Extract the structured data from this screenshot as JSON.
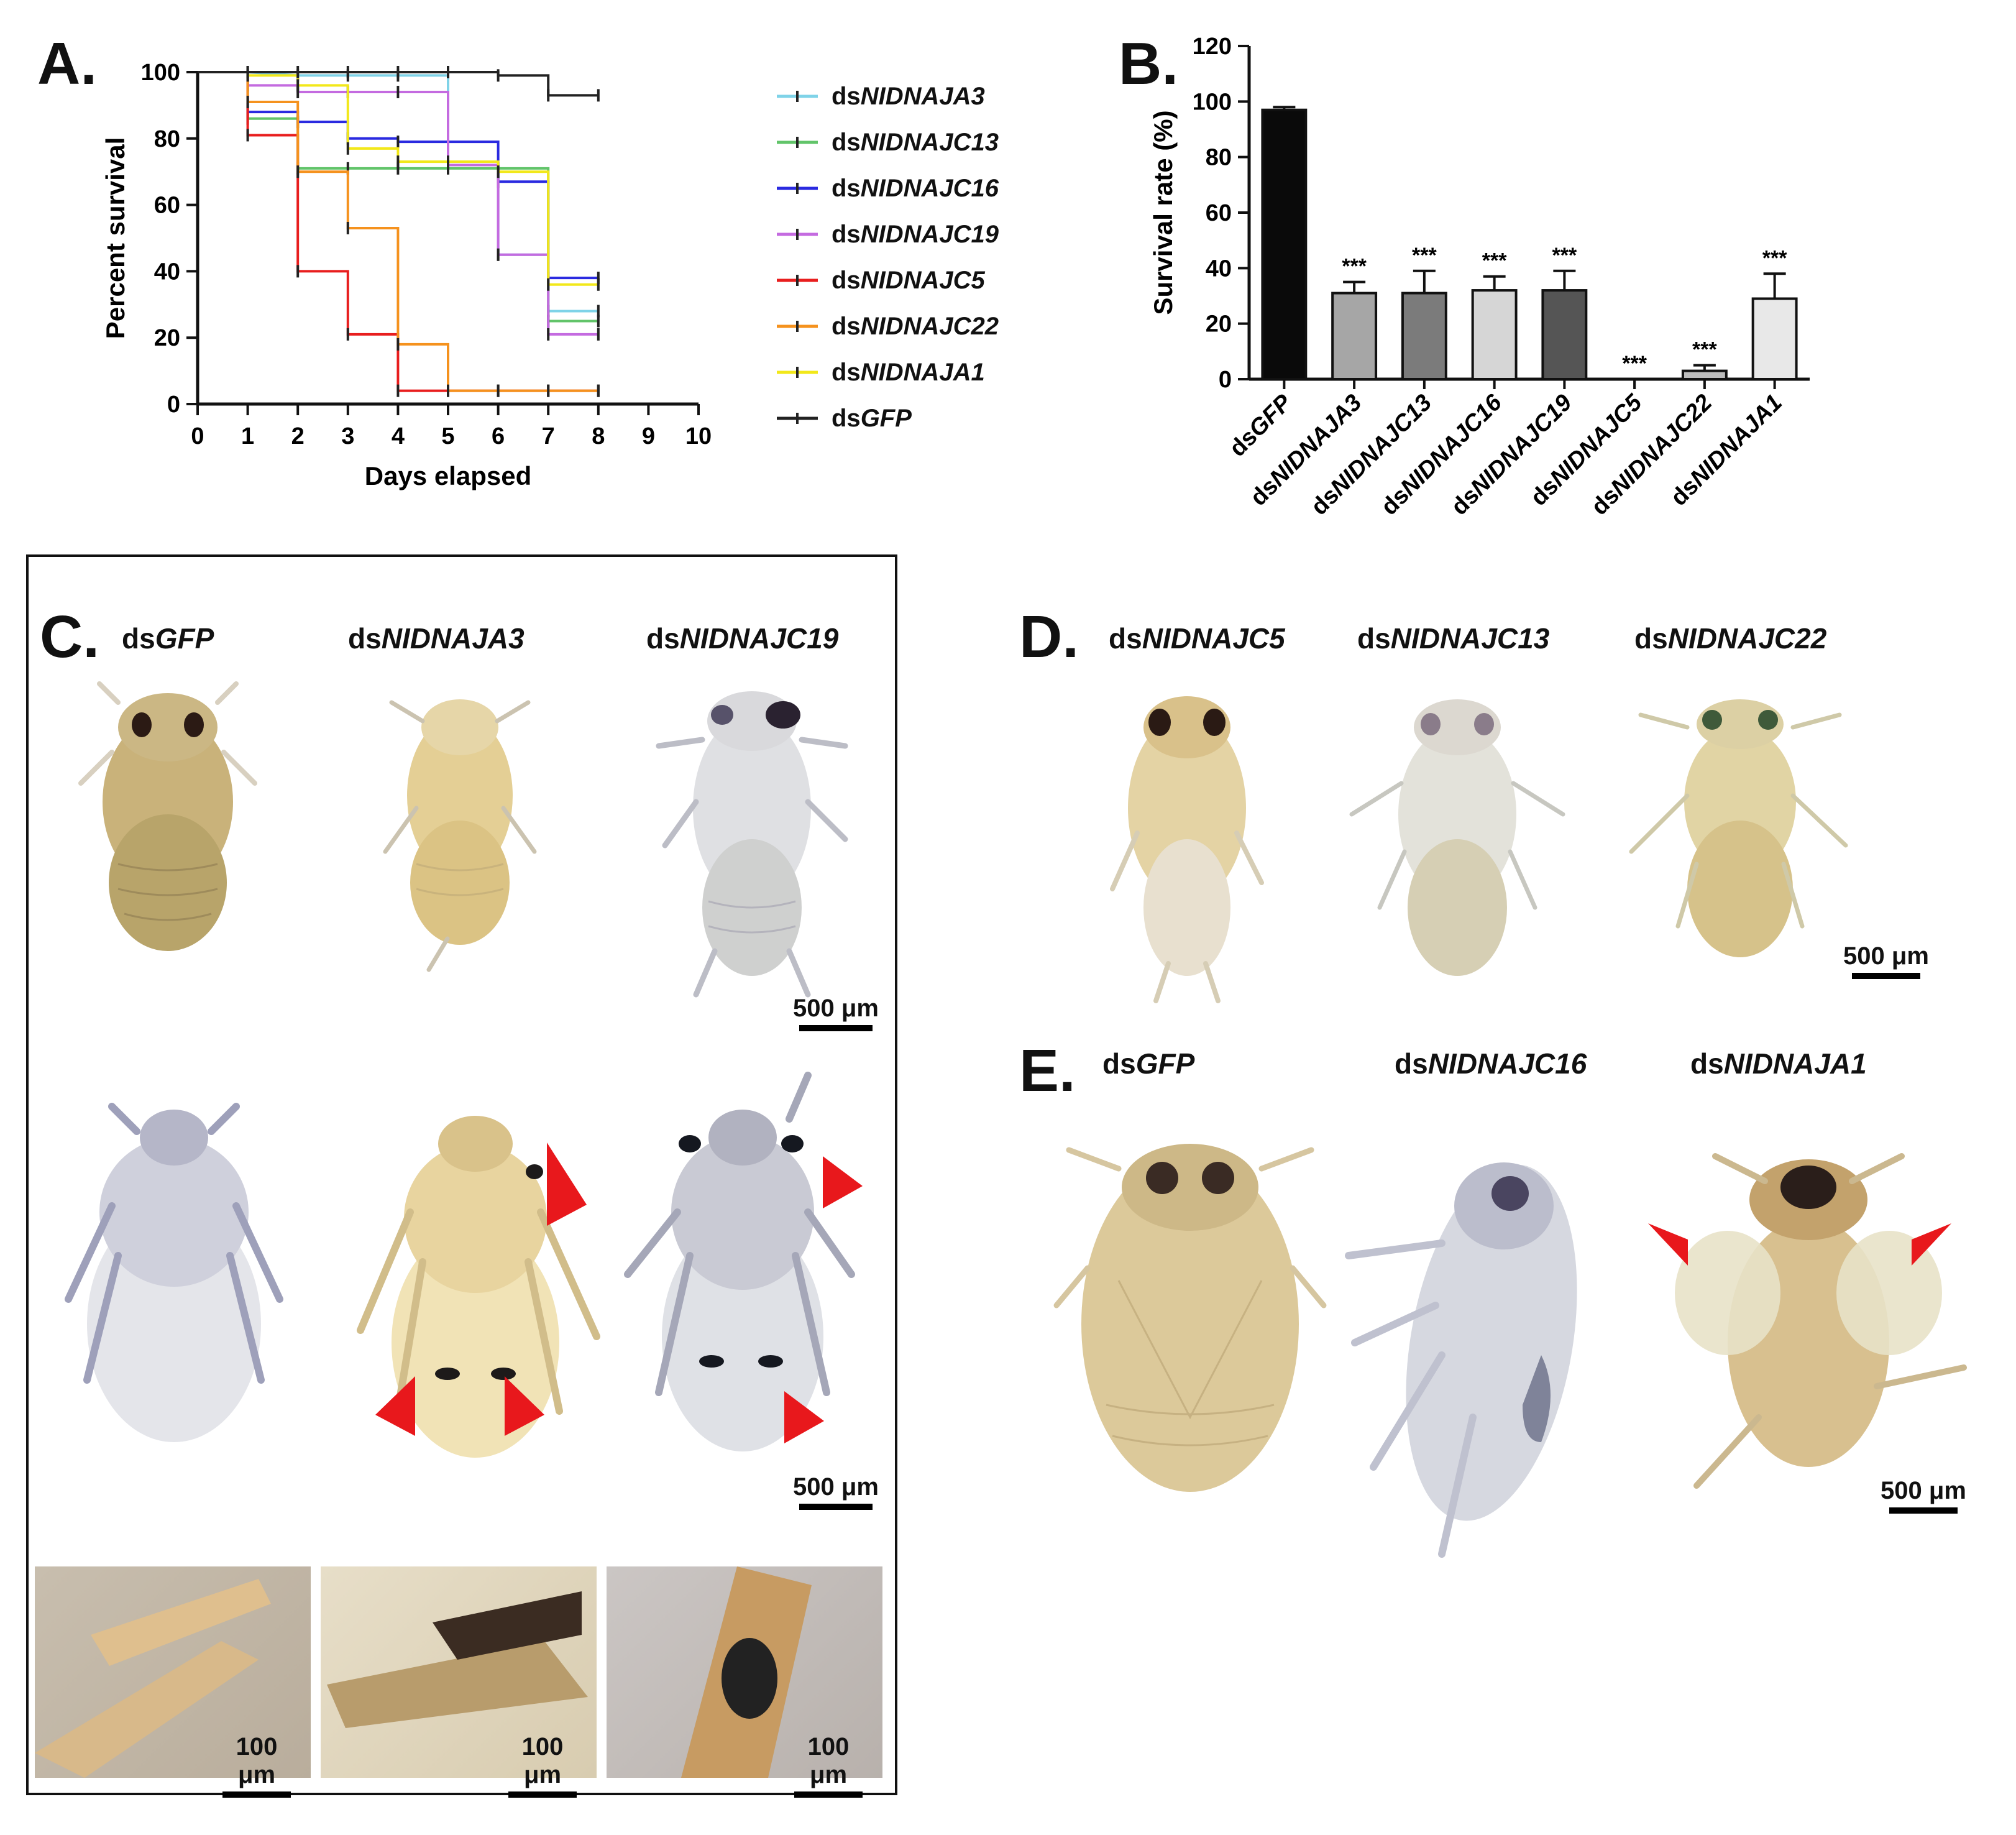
{
  "figure": {
    "panel_labels": {
      "a": "A.",
      "b": "B.",
      "c": "C.",
      "d": "D.",
      "e": "E."
    },
    "colors": {
      "NIDNAJA3": "#7fd3e8",
      "NIDNAJC13": "#62c46a",
      "NIDNAJC16": "#2a2ae0",
      "NIDNAJC19": "#c46be0",
      "NIDNAJC5": "#e81e1e",
      "NIDNAJC22": "#f5921e",
      "NIDNAJA1": "#f2e81a",
      "GFP": "#222222",
      "arrow": "#e8181c"
    }
  },
  "chart_data": [
    {
      "type": "line",
      "subtype": "kaplan-meier",
      "title": "",
      "xlabel": "Days elapsed",
      "ylabel": "Percent survival",
      "xlim": [
        0,
        10
      ],
      "ylim": [
        0,
        100
      ],
      "xticks": [
        "0",
        "1",
        "2",
        "3",
        "4",
        "5",
        "6",
        "7",
        "8",
        "9",
        "10"
      ],
      "yticks": [
        "0",
        "20",
        "40",
        "60",
        "80",
        "100"
      ],
      "legend_position": "right",
      "series": [
        {
          "key": "NIDNAJA3",
          "prefix": "ds",
          "name": "NIDNAJA3",
          "color": "#7fd3e8",
          "steps": [
            [
              0,
              100
            ],
            [
              1,
              100
            ],
            [
              2,
              99
            ],
            [
              5,
              99
            ],
            [
              5,
              72
            ],
            [
              6,
              72
            ],
            [
              6,
              45
            ],
            [
              7,
              45
            ],
            [
              7,
              28
            ],
            [
              8,
              28
            ]
          ]
        },
        {
          "key": "NIDNAJC13",
          "prefix": "ds",
          "name": "NIDNAJC13",
          "color": "#62c46a",
          "steps": [
            [
              0,
              100
            ],
            [
              1,
              100
            ],
            [
              1,
              86
            ],
            [
              2,
              86
            ],
            [
              2,
              71
            ],
            [
              7,
              71
            ],
            [
              7,
              25
            ],
            [
              8,
              25
            ]
          ]
        },
        {
          "key": "NIDNAJC16",
          "prefix": "ds",
          "name": "NIDNAJC16",
          "color": "#2a2ae0",
          "steps": [
            [
              0,
              100
            ],
            [
              1,
              100
            ],
            [
              1,
              88
            ],
            [
              2,
              88
            ],
            [
              2,
              85
            ],
            [
              3,
              85
            ],
            [
              3,
              80
            ],
            [
              4,
              80
            ],
            [
              4,
              79
            ],
            [
              6,
              79
            ],
            [
              6,
              67
            ],
            [
              7,
              67
            ],
            [
              7,
              38
            ],
            [
              8,
              38
            ]
          ]
        },
        {
          "key": "NIDNAJC19",
          "prefix": "ds",
          "name": "NIDNAJC19",
          "color": "#c46be0",
          "steps": [
            [
              0,
              100
            ],
            [
              1,
              100
            ],
            [
              1,
              96
            ],
            [
              2,
              96
            ],
            [
              2,
              94
            ],
            [
              5,
              94
            ],
            [
              5,
              72
            ],
            [
              6,
              72
            ],
            [
              6,
              45
            ],
            [
              7,
              45
            ],
            [
              7,
              21
            ],
            [
              8,
              21
            ]
          ]
        },
        {
          "key": "NIDNAJC5",
          "prefix": "ds",
          "name": "NIDNAJC5",
          "color": "#e81e1e",
          "steps": [
            [
              0,
              100
            ],
            [
              1,
              100
            ],
            [
              1,
              81
            ],
            [
              2,
              81
            ],
            [
              2,
              40
            ],
            [
              3,
              40
            ],
            [
              3,
              21
            ],
            [
              4,
              21
            ],
            [
              4,
              4
            ],
            [
              8,
              4
            ]
          ]
        },
        {
          "key": "NIDNAJC22",
          "prefix": "ds",
          "name": "NIDNAJC22",
          "color": "#f5921e",
          "steps": [
            [
              0,
              100
            ],
            [
              1,
              100
            ],
            [
              1,
              91
            ],
            [
              2,
              91
            ],
            [
              2,
              70
            ],
            [
              3,
              70
            ],
            [
              3,
              53
            ],
            [
              4,
              53
            ],
            [
              4,
              18
            ],
            [
              5,
              18
            ],
            [
              5,
              4
            ],
            [
              8,
              4
            ]
          ]
        },
        {
          "key": "NIDNAJA1",
          "prefix": "ds",
          "name": "NIDNAJA1",
          "color": "#f2e81a",
          "steps": [
            [
              0,
              100
            ],
            [
              1,
              100
            ],
            [
              1,
              99
            ],
            [
              2,
              99
            ],
            [
              2,
              96
            ],
            [
              3,
              96
            ],
            [
              3,
              77
            ],
            [
              4,
              77
            ],
            [
              4,
              73
            ],
            [
              6,
              73
            ],
            [
              6,
              70
            ],
            [
              7,
              70
            ],
            [
              7,
              36
            ],
            [
              8,
              36
            ]
          ]
        },
        {
          "key": "GFP",
          "prefix": "ds",
          "name": "GFP",
          "color": "#222222",
          "steps": [
            [
              0,
              100
            ],
            [
              6,
              100
            ],
            [
              6,
              99
            ],
            [
              7,
              99
            ],
            [
              7,
              93
            ],
            [
              8,
              93
            ]
          ]
        }
      ]
    },
    {
      "type": "bar",
      "title": "",
      "xlabel": "",
      "ylabel": "Survival rate (%)",
      "ylim": [
        0,
        120
      ],
      "yticks": [
        "0",
        "20",
        "40",
        "60",
        "80",
        "100",
        "120"
      ],
      "categories": [
        {
          "prefix": "ds",
          "name": "GFP"
        },
        {
          "prefix": "ds",
          "name": "NIDNAJA3"
        },
        {
          "prefix": "ds",
          "name": "NIDNAJC13"
        },
        {
          "prefix": "ds",
          "name": "NIDNAJC16"
        },
        {
          "prefix": "ds",
          "name": "NIDNAJC19"
        },
        {
          "prefix": "ds",
          "name": "NIDNAJC5"
        },
        {
          "prefix": "ds",
          "name": "NIDNAJC22"
        },
        {
          "prefix": "ds",
          "name": "NIDNAJA1"
        }
      ],
      "values": [
        97,
        31,
        31,
        32,
        32,
        0,
        3,
        29
      ],
      "errors": [
        1,
        4,
        8,
        5,
        7,
        0,
        2,
        9
      ],
      "bar_colors": [
        "#0a0a0a",
        "#a6a6a6",
        "#7b7b7b",
        "#d6d6d6",
        "#555555",
        "#ffffff",
        "#bdbdbd",
        "#e8e8e8"
      ],
      "significance": [
        "",
        "***",
        "***",
        "***",
        "***",
        "***",
        "***",
        "***"
      ]
    }
  ],
  "panel_c": {
    "labels": [
      {
        "prefix": "ds",
        "name": "GFP"
      },
      {
        "prefix": "ds",
        "name": "NIDNAJA3"
      },
      {
        "prefix": "ds",
        "name": "NIDNAJC19"
      }
    ],
    "scale_top": "500 μm",
    "scale_mid": "500 μm",
    "scale_close": [
      "100 μm",
      "100 μm",
      "100 μm"
    ]
  },
  "panel_d": {
    "labels": [
      {
        "prefix": "ds",
        "name": "NIDNAJC5"
      },
      {
        "prefix": "ds",
        "name": "NIDNAJC13"
      },
      {
        "prefix": "ds",
        "name": "NIDNAJC22"
      }
    ],
    "scale": "500 μm"
  },
  "panel_e": {
    "labels": [
      {
        "prefix": "ds",
        "name": "GFP"
      },
      {
        "prefix": "ds",
        "name": "NIDNAJC16"
      },
      {
        "prefix": "ds",
        "name": "NIDNAJA1"
      }
    ],
    "scale": "500 μm"
  }
}
